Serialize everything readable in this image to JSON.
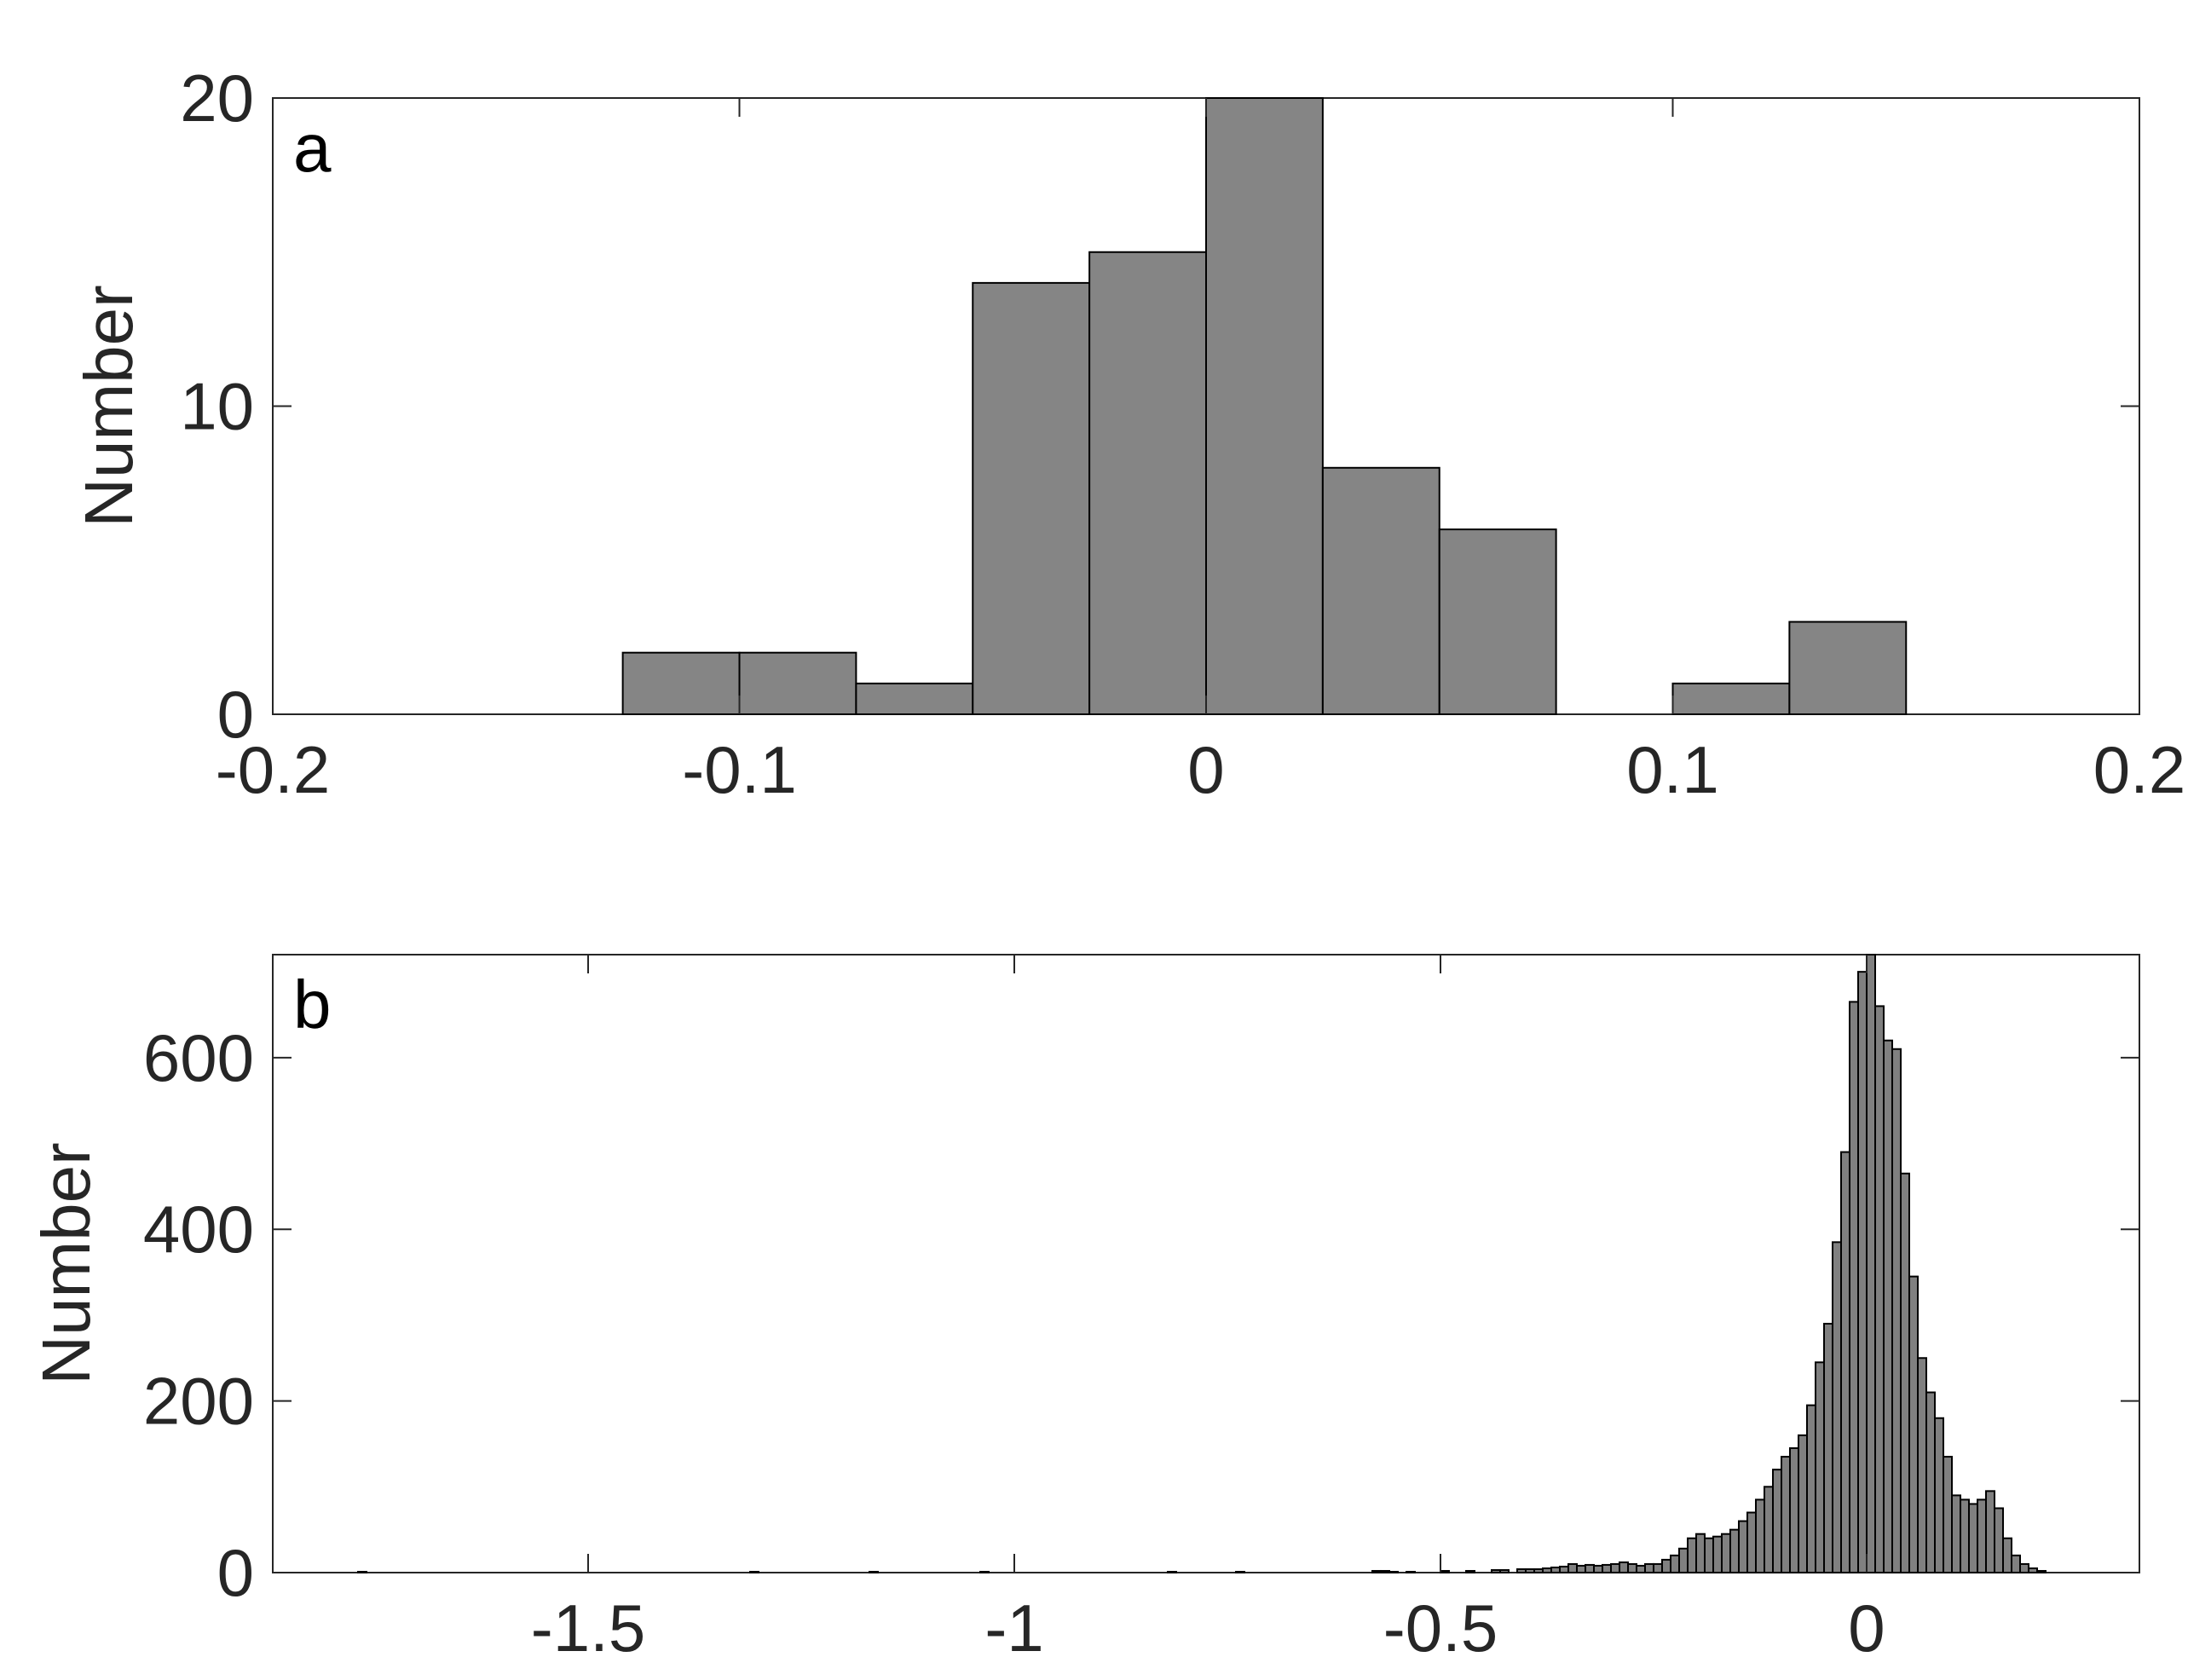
{
  "chart_data": [
    {
      "type": "bar",
      "panel_label": "a",
      "ylabel": "Number",
      "xlabel": "",
      "xlim": [
        -0.2,
        0.2
      ],
      "ylim": [
        0,
        20
      ],
      "xticks": [
        -0.2,
        -0.1,
        0,
        0.1,
        0.2
      ],
      "xtick_labels": [
        "-0.2",
        "-0.1",
        "0",
        "0.1",
        "0.2"
      ],
      "yticks": [
        0,
        10,
        20
      ],
      "ytick_labels": [
        "0",
        "10",
        "20"
      ],
      "bin_width": 0.025,
      "bin_starts": [
        -0.125,
        -0.1,
        -0.075,
        -0.05,
        -0.025,
        0,
        0.025,
        0.05,
        0.1,
        0.125
      ],
      "values": [
        2,
        2,
        1,
        14,
        15,
        20,
        8,
        6,
        1,
        3
      ],
      "bar_color": "#858585",
      "edge_color": "#000000"
    },
    {
      "type": "bar",
      "panel_label": "b",
      "ylabel": "Number",
      "xlabel": "",
      "xlim": [
        -1.87,
        0.32
      ],
      "ylim": [
        0,
        720
      ],
      "xticks": [
        -1.5,
        -1,
        -0.5,
        0
      ],
      "xtick_labels": [
        "-1.5",
        "-1",
        "-0.5",
        "0"
      ],
      "yticks": [
        0,
        200,
        400,
        600
      ],
      "ytick_labels": [
        "0",
        "200",
        "400",
        "600"
      ],
      "bin_width": 0.01,
      "bin_starts": [
        -1.77,
        -1.31,
        -1.17,
        -1.04,
        -0.82,
        -0.74,
        -0.58,
        -0.57,
        -0.56,
        -0.54,
        -0.5,
        -0.47,
        -0.44,
        -0.43,
        -0.41,
        -0.4,
        -0.39,
        -0.38,
        -0.37,
        -0.36,
        -0.35,
        -0.34,
        -0.33,
        -0.32,
        -0.31,
        -0.3,
        -0.29,
        -0.28,
        -0.27,
        -0.26,
        -0.25,
        -0.24,
        -0.23,
        -0.22,
        -0.21,
        -0.2,
        -0.19,
        -0.18,
        -0.17,
        -0.16,
        -0.15,
        -0.14,
        -0.13,
        -0.12,
        -0.11,
        -0.1,
        -0.09,
        -0.08,
        -0.07,
        -0.06,
        -0.05,
        -0.04,
        -0.03,
        -0.02,
        -0.01,
        0,
        0.01,
        0.02,
        0.03,
        0.04,
        0.05,
        0.06,
        0.07,
        0.08,
        0.09,
        0.1,
        0.11,
        0.12,
        0.13,
        0.14,
        0.15,
        0.16,
        0.17,
        0.18,
        0.19,
        0.2
      ],
      "values": [
        1,
        1,
        1,
        1,
        1,
        1,
        2,
        2,
        1,
        1,
        2,
        2,
        3,
        3,
        4,
        4,
        4,
        5,
        6,
        7,
        10,
        8,
        9,
        8,
        9,
        10,
        12,
        10,
        8,
        10,
        10,
        15,
        20,
        28,
        40,
        45,
        40,
        42,
        45,
        50,
        60,
        70,
        85,
        100,
        120,
        135,
        145,
        160,
        195,
        245,
        290,
        385,
        490,
        665,
        700,
        720,
        660,
        620,
        610,
        465,
        345,
        250,
        210,
        180,
        135,
        90,
        85,
        80,
        85,
        95,
        75,
        40,
        20,
        10,
        5,
        2
      ],
      "bar_color": "#808080",
      "edge_color": "#000000"
    }
  ]
}
